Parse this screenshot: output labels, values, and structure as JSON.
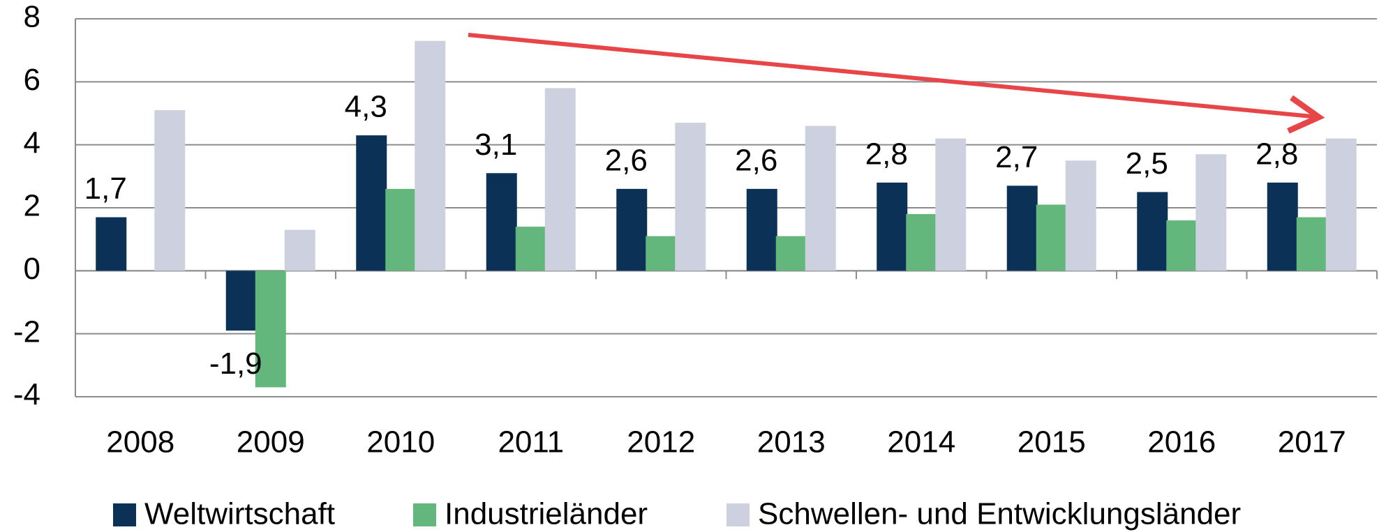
{
  "chart_data": {
    "type": "bar",
    "categories": [
      "2008",
      "2009",
      "2010",
      "2011",
      "2012",
      "2013",
      "2014",
      "2015",
      "2016",
      "2017"
    ],
    "series": [
      {
        "name": "Weltwirtschaft",
        "color": "#0b3157",
        "values": [
          1.7,
          -1.9,
          4.3,
          3.1,
          2.6,
          2.6,
          2.8,
          2.7,
          2.5,
          2.8
        ],
        "value_labels": [
          "1,7",
          "-1,9",
          "4,3",
          "3,1",
          "2,6",
          "2,6",
          "2,8",
          "2,7",
          "2,5",
          "2,8"
        ]
      },
      {
        "name": "Industrieländer",
        "color": "#63b77c",
        "values": [
          0,
          -3.7,
          2.6,
          1.4,
          1.1,
          1.1,
          1.8,
          2.1,
          1.6,
          1.7
        ]
      },
      {
        "name": "Schwellen- und Entwicklungsländer",
        "color": "#cdd1df",
        "values": [
          5.1,
          1.3,
          7.3,
          5.8,
          4.7,
          4.6,
          4.2,
          3.5,
          3.7,
          4.2
        ]
      }
    ],
    "ylim": [
      -4,
      8
    ],
    "yticks": [
      -4,
      -2,
      0,
      2,
      4,
      6,
      8
    ],
    "grid": true,
    "legend": "bottom"
  }
}
